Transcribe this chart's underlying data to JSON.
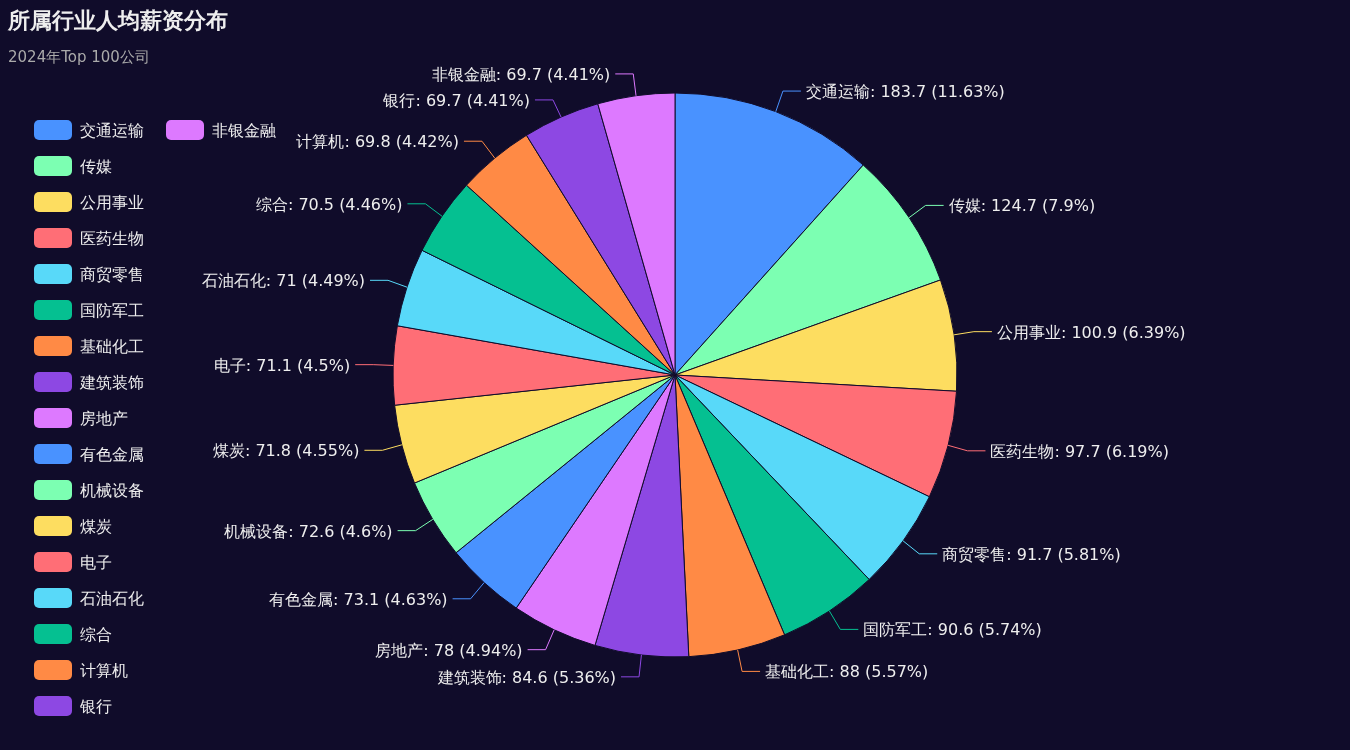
{
  "chart_data": {
    "type": "pie",
    "title": "所属行业人均薪资分布",
    "subtitle": "2024年Top 100公司",
    "legend": "left",
    "categories": [
      "交通运输",
      "传媒",
      "公用事业",
      "医药生物",
      "商贸零售",
      "国防军工",
      "基础化工",
      "建筑装饰",
      "房地产",
      "有色金属",
      "机械设备",
      "煤炭",
      "电子",
      "石油石化",
      "综合",
      "计算机",
      "银行",
      "非银金融"
    ],
    "values": [
      183.7,
      124.7,
      100.9,
      97.7,
      91.7,
      90.6,
      88,
      84.6,
      78,
      73.1,
      72.6,
      71.8,
      71.1,
      71,
      70.5,
      69.8,
      69.7,
      69.7
    ],
    "value_labels": [
      "交通运输: 183.7 (11.63%)",
      "传媒: 124.7 (7.9%)",
      "公用事业: 100.9 (6.39%)",
      "医药生物: 97.7 (6.19%)",
      "商贸零售: 91.7 (5.81%)",
      "国防军工: 90.6 (5.74%)",
      "基础化工: 88 (5.57%)",
      "建筑装饰: 84.6 (5.36%)",
      "房地产: 78 (4.94%)",
      "有色金属: 73.1 (4.63%)",
      "机械设备: 72.6 (4.6%)",
      "煤炭: 71.8 (4.55%)",
      "电子: 71.1 (4.5%)",
      "石油石化: 71 (4.49%)",
      "综合: 70.5 (4.46%)",
      "计算机: 69.8 (4.42%)",
      "银行: 69.7 (4.41%)",
      "非银金融: 69.7 (4.41%)"
    ],
    "colors": [
      "#4992ff",
      "#7cffb2",
      "#fddd60",
      "#ff6e76",
      "#58d9f9",
      "#05c091",
      "#ff8a45",
      "#8d48e3",
      "#dd79ff",
      "#4992ff",
      "#7cffb2",
      "#fddd60",
      "#ff6e76",
      "#58d9f9",
      "#05c091",
      "#ff8a45",
      "#8d48e3",
      "#dd79ff"
    ]
  }
}
